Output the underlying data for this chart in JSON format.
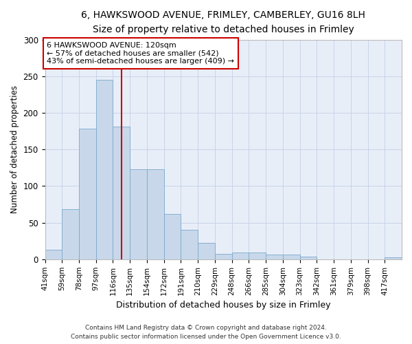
{
  "title1": "6, HAWKSWOOD AVENUE, FRIMLEY, CAMBERLEY, GU16 8LH",
  "title2": "Size of property relative to detached houses in Frimley",
  "xlabel": "Distribution of detached houses by size in Frimley",
  "ylabel": "Number of detached properties",
  "footnote1": "Contains HM Land Registry data © Crown copyright and database right 2024.",
  "footnote2": "Contains public sector information licensed under the Open Government Licence v3.0.",
  "annotation_line1": "6 HAWKSWOOD AVENUE: 120sqm",
  "annotation_line2": "← 57% of detached houses are smaller (542)",
  "annotation_line3": "43% of semi-detached houses are larger (409) →",
  "bar_color": "#c8d8ea",
  "bar_edge_color": "#7aa8cc",
  "vline_color": "#cc0000",
  "vline_x": 115.5,
  "categories": [
    "41sqm",
    "59sqm",
    "78sqm",
    "97sqm",
    "116sqm",
    "135sqm",
    "154sqm",
    "172sqm",
    "191sqm",
    "210sqm",
    "229sqm",
    "248sqm",
    "266sqm",
    "285sqm",
    "304sqm",
    "323sqm",
    "342sqm",
    "361sqm",
    "379sqm",
    "398sqm",
    "417sqm"
  ],
  "bin_edges": [
    32.0,
    50.5,
    69.0,
    87.5,
    106.0,
    124.5,
    143.0,
    161.5,
    180.0,
    198.5,
    217.0,
    235.5,
    254.0,
    272.5,
    291.0,
    309.5,
    328.0,
    346.5,
    365.0,
    383.5,
    402.0,
    420.5
  ],
  "values": [
    13,
    68,
    178,
    245,
    181,
    123,
    123,
    62,
    40,
    22,
    7,
    9,
    9,
    6,
    6,
    4,
    0,
    0,
    0,
    0,
    3
  ],
  "ylim": [
    0,
    300
  ],
  "yticks": [
    0,
    50,
    100,
    150,
    200,
    250,
    300
  ],
  "grid_color": "#c8d4e8",
  "bg_color": "#e8eef8",
  "box_edge_color": "#cc0000",
  "title1_fontsize": 11,
  "title2_fontsize": 9
}
